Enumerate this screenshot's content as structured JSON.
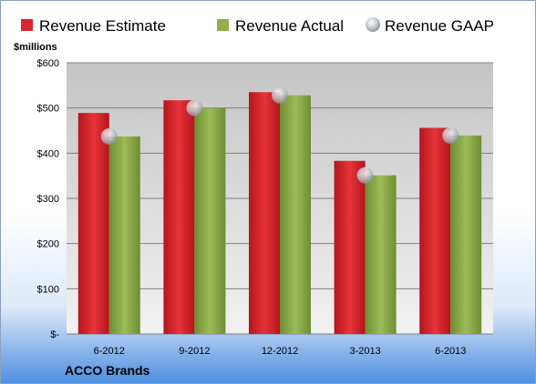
{
  "chart_data": {
    "type": "bar",
    "title": "",
    "unit_label": "$millions",
    "company": "ACCO Brands",
    "categories": [
      "6-2012",
      "9-2012",
      "12-2012",
      "3-2013",
      "6-2013"
    ],
    "series": [
      {
        "name": "Revenue Estimate",
        "kind": "bar",
        "color": "#d7282f",
        "values": [
          489,
          517,
          535,
          383,
          456
        ]
      },
      {
        "name": "Revenue Actual",
        "kind": "bar",
        "color": "#8fb04a",
        "values": [
          437,
          500,
          528,
          351,
          439
        ]
      },
      {
        "name": "Revenue GAAP",
        "kind": "marker",
        "color": "#c8ccd4",
        "values": [
          437,
          500,
          528,
          351,
          439
        ]
      }
    ],
    "ylim": [
      0,
      600
    ],
    "yticks": [
      {
        "value": 0,
        "label": "$-"
      },
      {
        "value": 100,
        "label": "$100"
      },
      {
        "value": 200,
        "label": "$200"
      },
      {
        "value": 300,
        "label": "$300"
      },
      {
        "value": 400,
        "label": "$400"
      },
      {
        "value": 500,
        "label": "$500"
      },
      {
        "value": 600,
        "label": "$600"
      }
    ],
    "grid": true,
    "legend_position": "top"
  }
}
